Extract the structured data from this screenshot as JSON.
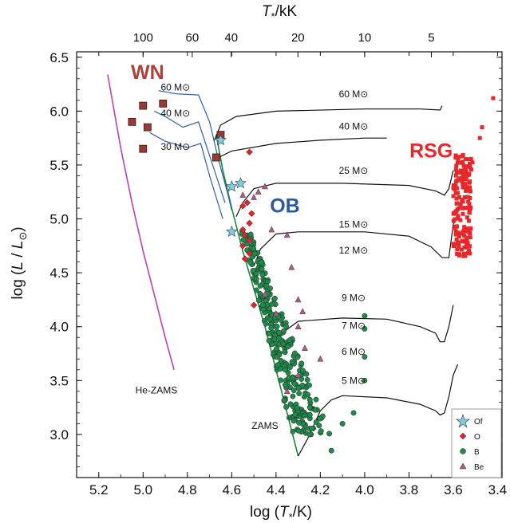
{
  "chart_data": {
    "type": "scatter",
    "xlabel": "log (T*/K)",
    "ylabel": "log (L/L⊙)",
    "top_xlabel": "T*/kK",
    "xlim": [
      5.3,
      3.38
    ],
    "ylim": [
      2.6,
      6.55
    ],
    "x_ticks": [
      "5.2",
      "5.0",
      "4.8",
      "4.6",
      "4.4",
      "4.2",
      "4.0",
      "3.8",
      "3.6",
      "3.4"
    ],
    "y_ticks": [
      "3.0",
      "3.5",
      "4.0",
      "4.5",
      "5.0",
      "5.5",
      "6.0",
      "6.5"
    ],
    "top_ticks": [
      {
        "label": "100",
        "kK": 100
      },
      {
        "label": "60",
        "kK": 60
      },
      {
        "label": "40",
        "kK": 40
      },
      {
        "label": "20",
        "kK": 20
      },
      {
        "label": "10",
        "kK": 10
      },
      {
        "label": "5",
        "kK": 5
      }
    ],
    "group_labels": [
      {
        "text": "WN",
        "color": "#b0403a",
        "x": 4.98,
        "y": 6.3
      },
      {
        "text": "OB",
        "color": "#2e57a8",
        "x": 4.36,
        "y": 5.06
      },
      {
        "text": "RSG",
        "color": "#e8272b",
        "x": 3.7,
        "y": 5.57
      }
    ],
    "curve_labels": {
      "he_zams": "He-ZAMS",
      "zams": "ZAMS"
    },
    "mass_unit": "M⊙",
    "legend": [
      "Of",
      "O",
      "B",
      "Be"
    ],
    "colors": {
      "of": "#7ccde0",
      "o": "#e0242b",
      "b": "#1f8a4a",
      "be": "#b05a8a",
      "wn": "#9a3a30",
      "rsg": "#e8272b",
      "he_zams": "#c040b0",
      "zams": "#1d8a3a",
      "wn_tracks": "#2f5ba8"
    },
    "tracks": [
      {
        "mass": "60",
        "points": [
          [
            4.68,
            5.72
          ],
          [
            4.65,
            5.87
          ],
          [
            4.58,
            5.95
          ],
          [
            4.4,
            6.0
          ],
          [
            4.0,
            6.02
          ],
          [
            3.75,
            6.02
          ],
          [
            3.66,
            6.01
          ],
          [
            3.65,
            6.05
          ]
        ]
      },
      {
        "mass": "40",
        "points": [
          [
            4.66,
            5.57
          ],
          [
            4.6,
            5.63
          ],
          [
            4.4,
            5.7
          ],
          [
            4.2,
            5.73
          ],
          [
            4.0,
            5.75
          ],
          [
            3.9,
            5.75
          ]
        ]
      },
      {
        "mass": "25",
        "points": [
          [
            4.58,
            5.02
          ],
          [
            4.55,
            5.15
          ],
          [
            4.5,
            5.28
          ],
          [
            4.4,
            5.33
          ],
          [
            4.1,
            5.33
          ],
          [
            3.8,
            5.31
          ],
          [
            3.68,
            5.26
          ],
          [
            3.64,
            5.22
          ],
          [
            3.62,
            5.28
          ],
          [
            3.6,
            5.45
          ]
        ]
      },
      {
        "mass": "15",
        "points": [
          [
            4.5,
            4.56
          ],
          [
            4.47,
            4.72
          ],
          [
            4.4,
            4.86
          ],
          [
            4.3,
            4.88
          ],
          [
            4.0,
            4.88
          ],
          [
            3.8,
            4.84
          ],
          [
            3.7,
            4.74
          ],
          [
            3.65,
            4.64
          ],
          [
            3.62,
            4.64
          ],
          [
            3.6,
            4.95
          ],
          [
            3.58,
            5.02
          ]
        ]
      },
      {
        "mass": "9",
        "points": [
          [
            4.41,
            3.72
          ],
          [
            4.38,
            3.93
          ],
          [
            4.3,
            4.05
          ],
          [
            4.1,
            4.08
          ],
          [
            3.9,
            4.07
          ],
          [
            3.75,
            4.0
          ],
          [
            3.68,
            3.94
          ],
          [
            3.66,
            3.86
          ],
          [
            3.64,
            3.86
          ],
          [
            3.62,
            4.0
          ],
          [
            3.6,
            4.2
          ]
        ]
      },
      {
        "mass": "5",
        "points": [
          [
            4.3,
            2.8
          ],
          [
            4.26,
            2.95
          ],
          [
            4.2,
            3.22
          ],
          [
            4.15,
            3.32
          ],
          [
            4.1,
            3.36
          ],
          [
            3.9,
            3.34
          ],
          [
            3.75,
            3.28
          ],
          [
            3.68,
            3.22
          ],
          [
            3.66,
            3.18
          ],
          [
            3.64,
            3.2
          ],
          [
            3.62,
            3.35
          ],
          [
            3.6,
            3.55
          ],
          [
            3.58,
            3.65
          ]
        ]
      }
    ],
    "track_labels": [
      {
        "text": "60",
        "x": 4.05,
        "y": 6.13
      },
      {
        "text": "40",
        "x": 4.05,
        "y": 5.83
      },
      {
        "text": "25",
        "x": 4.05,
        "y": 5.42
      },
      {
        "text": "15",
        "x": 4.05,
        "y": 4.92
      },
      {
        "text": "12",
        "x": 4.05,
        "y": 4.68
      },
      {
        "text": "9",
        "x": 4.05,
        "y": 4.24
      },
      {
        "text": "7",
        "x": 4.05,
        "y": 3.98
      },
      {
        "text": "6",
        "x": 4.05,
        "y": 3.74
      },
      {
        "text": "5",
        "x": 4.05,
        "y": 3.47
      }
    ],
    "wn_track_labels": [
      {
        "text": "60",
        "x": 4.92,
        "y": 6.19
      },
      {
        "text": "40",
        "x": 4.92,
        "y": 5.95
      },
      {
        "text": "30",
        "x": 4.92,
        "y": 5.64
      }
    ],
    "he_zams": [
      [
        5.16,
        6.34
      ],
      [
        5.1,
        5.65
      ],
      [
        5.05,
        5.15
      ],
      [
        5.0,
        4.7
      ],
      [
        4.95,
        4.3
      ],
      [
        4.9,
        3.9
      ],
      [
        4.86,
        3.6
      ]
    ],
    "zams": [
      [
        4.67,
        5.78
      ],
      [
        4.64,
        5.45
      ],
      [
        4.6,
        5.1
      ],
      [
        4.55,
        4.7
      ],
      [
        4.5,
        4.35
      ],
      [
        4.45,
        4.0
      ],
      [
        4.4,
        3.6
      ],
      [
        4.35,
        3.2
      ],
      [
        4.3,
        2.8
      ]
    ],
    "wn_tracks": [
      [
        [
          4.93,
          6.19
        ],
        [
          4.85,
          6.16
        ],
        [
          4.75,
          6.15
        ],
        [
          4.7,
          5.9
        ],
        [
          4.66,
          5.55
        ],
        [
          4.62,
          5.25
        ],
        [
          4.6,
          5.08
        ]
      ],
      [
        [
          4.95,
          6.0
        ],
        [
          4.9,
          5.95
        ],
        [
          4.82,
          5.85
        ],
        [
          4.75,
          5.9
        ],
        [
          4.71,
          5.65
        ],
        [
          4.67,
          5.4
        ],
        [
          4.63,
          5.15
        ]
      ],
      [
        [
          4.97,
          5.8
        ],
        [
          4.9,
          5.72
        ],
        [
          4.8,
          5.66
        ],
        [
          4.74,
          5.7
        ],
        [
          4.7,
          5.4
        ],
        [
          4.67,
          5.2
        ],
        [
          4.64,
          5.0
        ]
      ]
    ],
    "wn_stars": [
      [
        5.05,
        5.9
      ],
      [
        5.0,
        6.05
      ],
      [
        4.98,
        5.85
      ],
      [
        5.0,
        5.65
      ],
      [
        4.91,
        6.07
      ],
      [
        4.67,
        5.57
      ],
      [
        4.65,
        5.78
      ]
    ],
    "of_stars": [
      [
        4.65,
        5.73
      ],
      [
        4.6,
        5.3
      ],
      [
        4.56,
        5.33
      ],
      [
        4.6,
        4.88
      ]
    ],
    "o_stars": [
      [
        4.52,
        5.62
      ],
      [
        4.53,
        5.15
      ],
      [
        4.55,
        5.12
      ],
      [
        4.51,
        5.05
      ],
      [
        4.55,
        4.9
      ],
      [
        4.52,
        4.96
      ],
      [
        4.54,
        4.85
      ],
      [
        4.52,
        4.8
      ],
      [
        4.55,
        4.75
      ],
      [
        4.52,
        4.68
      ],
      [
        4.54,
        4.63
      ],
      [
        4.5,
        4.2
      ]
    ],
    "be_stars": [
      [
        4.55,
        5.22
      ],
      [
        4.5,
        5.2
      ],
      [
        4.48,
        5.25
      ],
      [
        4.45,
        5.3
      ],
      [
        4.42,
        4.9
      ],
      [
        4.35,
        4.85
      ],
      [
        4.33,
        4.55
      ],
      [
        4.3,
        4.25
      ],
      [
        4.28,
        4.14
      ],
      [
        4.3,
        4.0
      ],
      [
        4.27,
        3.8
      ],
      [
        4.2,
        3.7
      ],
      [
        4.35,
        3.4
      ],
      [
        4.3,
        3.55
      ],
      [
        4.45,
        4.3
      ],
      [
        4.4,
        4.12
      ]
    ],
    "legend_position": "bottom-right"
  }
}
